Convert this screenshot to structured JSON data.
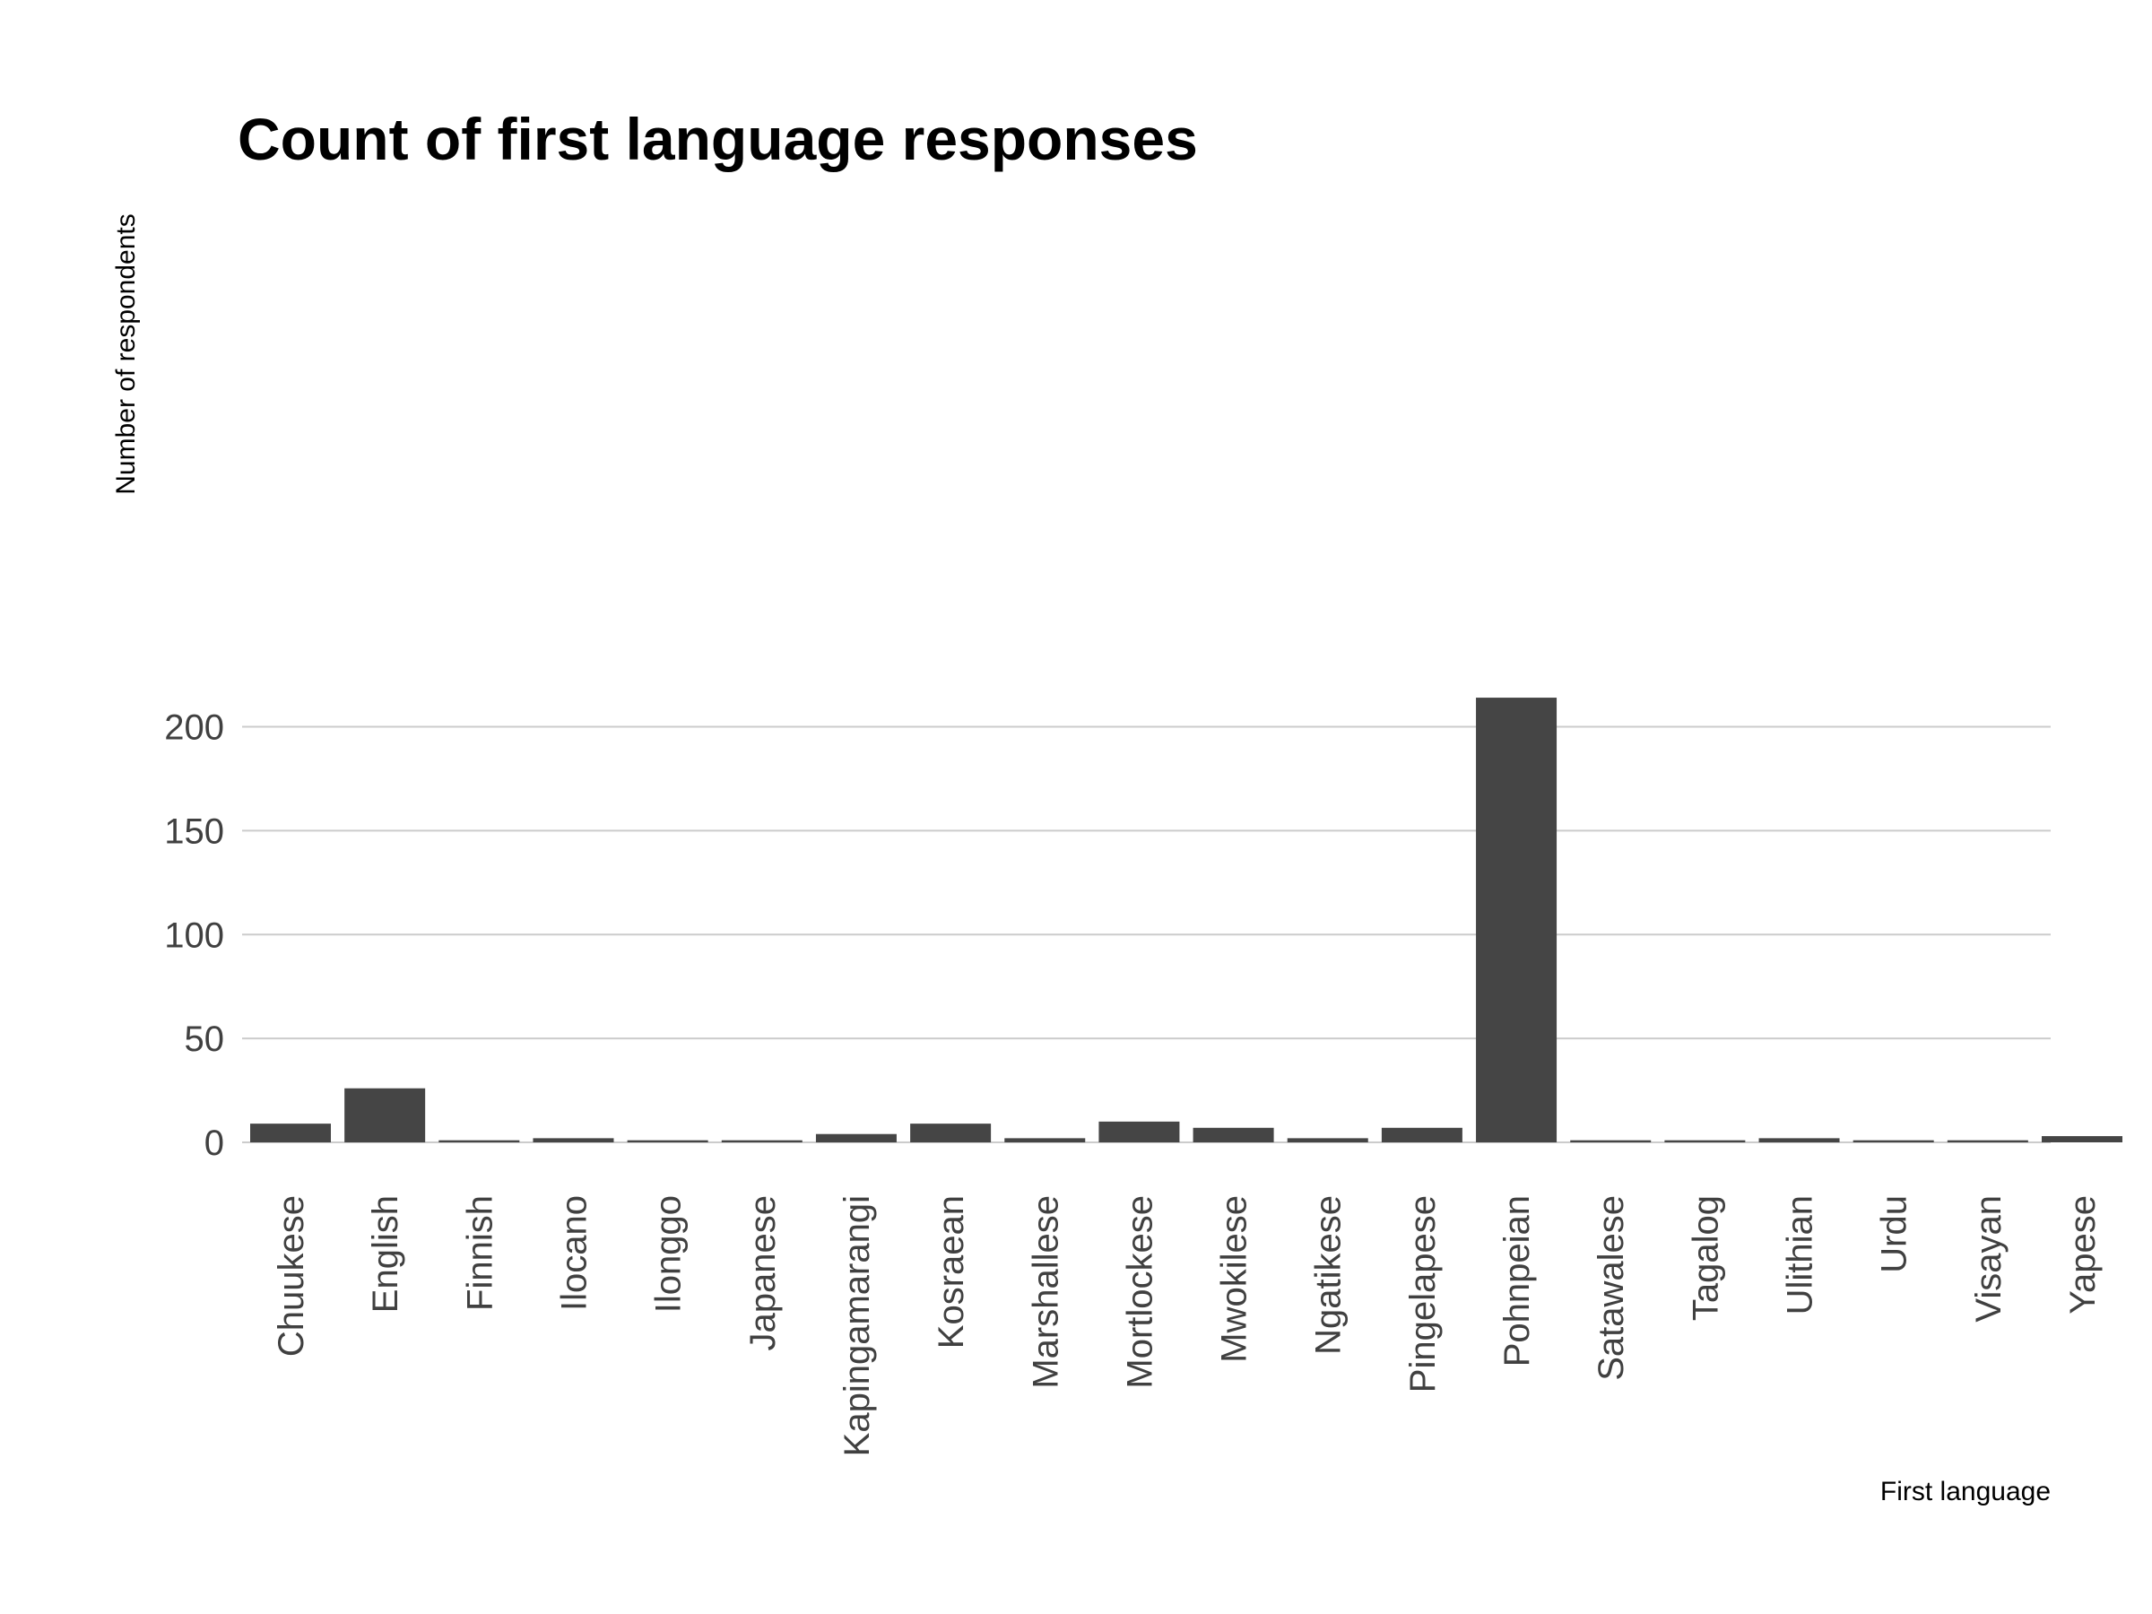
{
  "chart_data": {
    "type": "bar",
    "title": "Count of first language responses",
    "xlabel": "First language",
    "ylabel": "Number of respondents",
    "categories": [
      "Chuukese",
      "English",
      "Finnish",
      "Ilocano",
      "Ilonggo",
      "Japanese",
      "Kapingamarangi",
      "Kosraean",
      "Marshallese",
      "Mortlockese",
      "Mwokilese",
      "Ngatikese",
      "Pingelapese",
      "Pohnpeian",
      "Satawalese",
      "Tagalog",
      "Ulithian",
      "Urdu",
      "Visayan",
      "Yapese"
    ],
    "values": [
      9,
      26,
      1,
      2,
      1,
      1,
      4,
      9,
      2,
      10,
      7,
      2,
      7,
      214,
      1,
      1,
      2,
      1,
      1,
      3
    ],
    "ylim": [
      0,
      220
    ],
    "yticks": [
      0,
      50,
      100,
      150,
      200
    ],
    "grid": true,
    "legend": "none",
    "bar_color": "#454545",
    "grid_color": "#cccccc"
  }
}
